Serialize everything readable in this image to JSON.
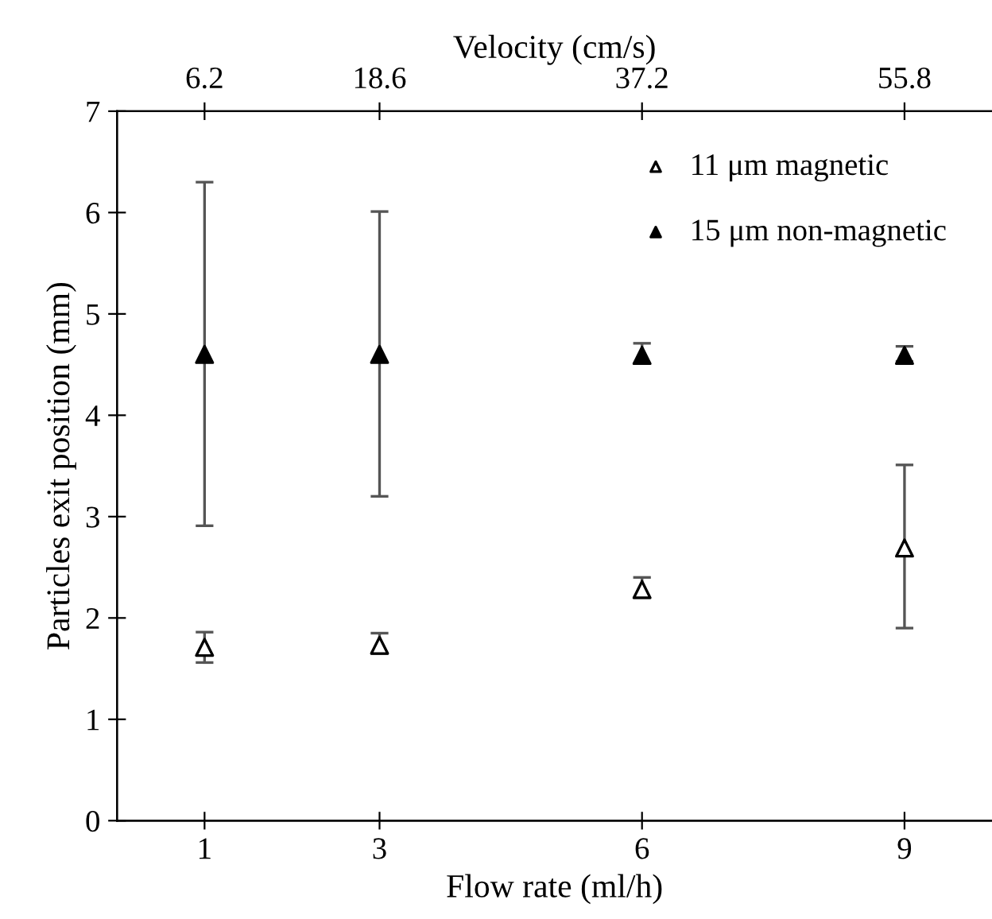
{
  "chart_data": {
    "type": "scatter",
    "xlabel": "Flow rate (ml/h)",
    "ylabel": "Particles exit position (mm)",
    "x2label": "Velocity (cm/s)",
    "x": [
      1,
      3,
      6,
      9
    ],
    "series": [
      {
        "name": "11 μm magnetic",
        "color": "#ffffff",
        "marker": "triangle",
        "values": [
          1.71,
          1.73,
          2.28,
          2.69
        ],
        "errors": [
          [
            1.56,
            1.86
          ],
          [
            1.65,
            1.85
          ],
          [
            2.2,
            2.4
          ],
          [
            1.9,
            3.51
          ]
        ]
      },
      {
        "name": "15 μm non-magnetic",
        "color": "#000000",
        "marker": "triangle",
        "values": [
          4.6,
          4.6,
          4.59,
          4.59
        ],
        "errors": [
          [
            2.91,
            6.3
          ],
          [
            3.2,
            6.01
          ],
          [
            4.51,
            4.71
          ],
          [
            4.53,
            4.68
          ]
        ]
      }
    ],
    "xlim": [
      0,
      10
    ],
    "xticks": [
      1,
      3,
      6,
      9
    ],
    "x2lim": [
      0,
      62
    ],
    "x2ticks": [
      6.2,
      18.6,
      37.2,
      55.8
    ],
    "ylim": [
      0,
      7
    ],
    "yticks": [
      0,
      1,
      2,
      3,
      4,
      5,
      6,
      7
    ],
    "grid": false,
    "legend": "top right"
  }
}
